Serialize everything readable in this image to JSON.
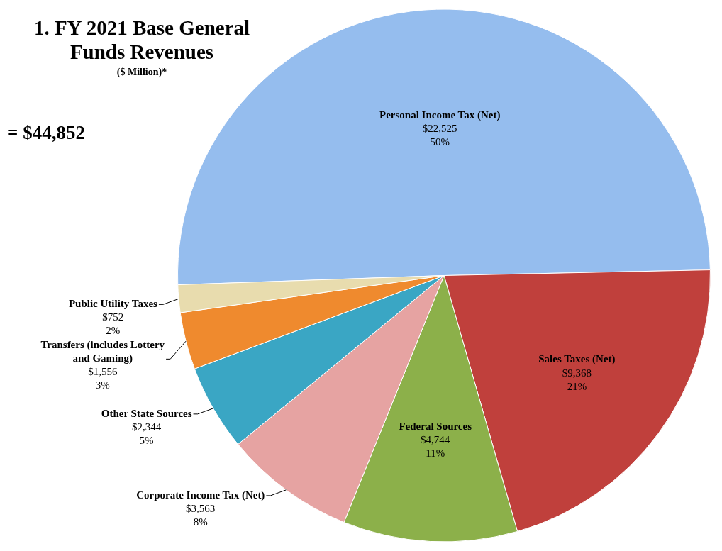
{
  "chart_data": {
    "type": "pie",
    "title": "1.  FY 2021 Base General Funds Revenues",
    "subtitle": "($ Million)*",
    "annotations": [
      "= $44,852"
    ],
    "categories": [
      "Personal Income Tax (Net)",
      "Sales Taxes (Net)",
      "Federal Sources",
      "Corporate Income Tax (Net)",
      "Other State Sources",
      "Transfers (includes Lottery and Gaming)",
      "Public Utility Taxes"
    ],
    "values": [
      22525,
      9368,
      4744,
      3563,
      2344,
      1556,
      752
    ],
    "value_labels": [
      "$22,525\n50%",
      "$9,368\n21%",
      "$4,744\n11%",
      "$3,563\n8%",
      "$2,344\n5%",
      "$1,556\n3%",
      "$752\n2%"
    ],
    "colors": [
      "#95bdee",
      "#c0403c",
      "#8cb04a",
      "#e6a3a2",
      "#3aa6c4",
      "#ef8a2e",
      "#e8dcae"
    ],
    "legend": false
  }
}
